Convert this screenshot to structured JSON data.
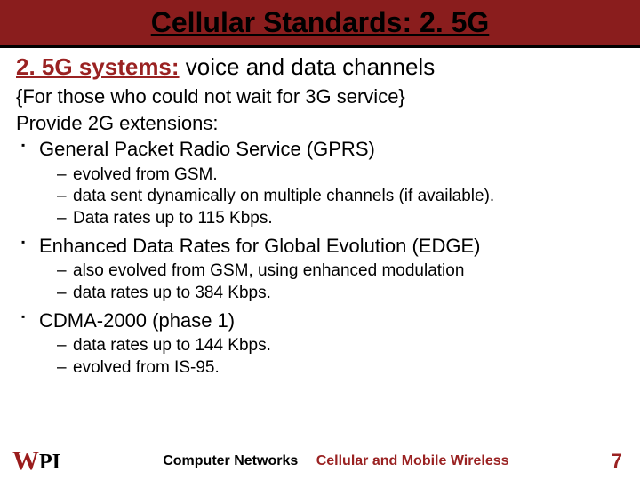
{
  "colors": {
    "title_bar_bg": "#8a1d1d",
    "accent": "#9a2222",
    "text": "#000000",
    "background": "#ffffff"
  },
  "title": "Cellular Standards: 2. 5G",
  "subtitle_accent": "2. 5G systems:",
  "subtitle_rest": " voice and data channels",
  "intro_line1": "{For those who could not wait for 3G service}",
  "intro_line2": "Provide 2G extensions:",
  "items": [
    {
      "label": "General Packet Radio Service (GPRS)",
      "subs": [
        "evolved from GSM.",
        "data sent dynamically on multiple channels (if available).",
        "Data rates up to 115 Kbps."
      ]
    },
    {
      "label": "Enhanced Data Rates for Global Evolution (EDGE)",
      "subs": [
        "also evolved from GSM, using enhanced modulation",
        "data rates up to 384 Kbps."
      ]
    },
    {
      "label": "CDMA-2000 (phase 1)",
      "subs": [
        "data rates up to 144 Kbps.",
        "evolved from IS-95."
      ]
    }
  ],
  "footer": {
    "logo_w": "W",
    "logo_pi": "PI",
    "center_black": "Computer Networks",
    "center_accent": "Cellular and Mobile Wireless",
    "page": "7"
  }
}
